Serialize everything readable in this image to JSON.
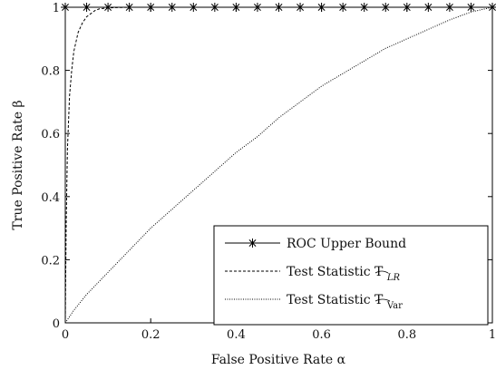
{
  "chart_data": {
    "type": "line",
    "xlabel": "False Positive Rate α",
    "ylabel": "True Positive Rate β",
    "xlim": [
      0,
      1
    ],
    "ylim": [
      0,
      1
    ],
    "x_ticks": [
      "0",
      "0.2",
      "0.4",
      "0.6",
      "0.8",
      "1"
    ],
    "y_ticks": [
      "0",
      "0.2",
      "0.4",
      "0.6",
      "0.8",
      "1"
    ],
    "grid": false,
    "legend_position": "bottom-right",
    "series": [
      {
        "name": "ROC Upper Bound",
        "style": "solid-star",
        "x": [
          0,
          0.0,
          0.05,
          0.1,
          0.15,
          0.2,
          0.25,
          0.3,
          0.35,
          0.4,
          0.45,
          0.5,
          0.55,
          0.6,
          0.65,
          0.7,
          0.75,
          0.8,
          0.85,
          0.9,
          0.95,
          1.0
        ],
        "y": [
          0,
          1,
          1,
          1,
          1,
          1,
          1,
          1,
          1,
          1,
          1,
          1,
          1,
          1,
          1,
          1,
          1,
          1,
          1,
          1,
          1,
          1
        ]
      },
      {
        "name": "Test Statistic T",
        "subscript": "LR",
        "style": "dashed",
        "x": [
          0,
          0.002,
          0.005,
          0.01,
          0.015,
          0.02,
          0.03,
          0.04,
          0.05,
          0.06,
          0.07,
          0.08,
          0.1,
          0.12,
          0.15,
          0.2,
          0.3,
          0.5,
          0.7,
          1.0
        ],
        "y": [
          0,
          0.3,
          0.55,
          0.72,
          0.8,
          0.86,
          0.92,
          0.95,
          0.97,
          0.98,
          0.99,
          0.995,
          0.998,
          0.999,
          1,
          1,
          1,
          1,
          1,
          1
        ]
      },
      {
        "name": "Test Statistic T",
        "subscript": "Var",
        "style": "dotted",
        "x": [
          0,
          0.02,
          0.05,
          0.1,
          0.15,
          0.2,
          0.25,
          0.3,
          0.35,
          0.4,
          0.45,
          0.5,
          0.55,
          0.6,
          0.65,
          0.7,
          0.75,
          0.8,
          0.85,
          0.9,
          0.95,
          1.0
        ],
        "y": [
          0,
          0.04,
          0.09,
          0.16,
          0.23,
          0.3,
          0.36,
          0.42,
          0.48,
          0.54,
          0.59,
          0.65,
          0.7,
          0.75,
          0.79,
          0.83,
          0.87,
          0.9,
          0.93,
          0.96,
          0.985,
          1.0
        ]
      }
    ]
  }
}
